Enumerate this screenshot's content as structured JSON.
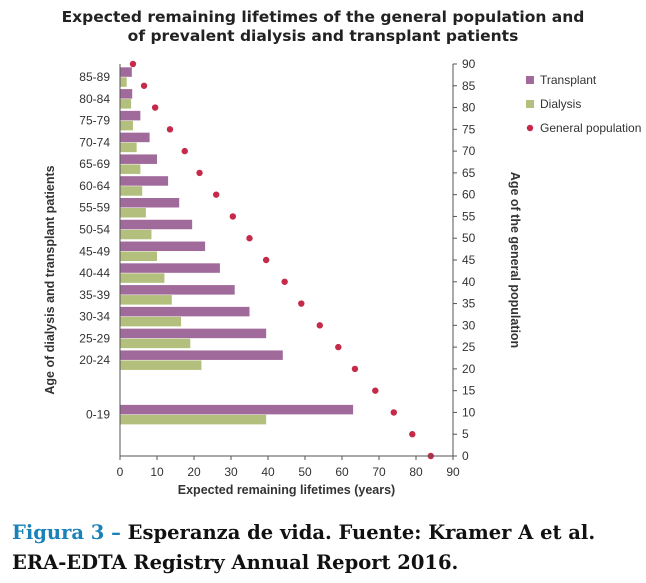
{
  "chart_data": {
    "type": "bar",
    "orientation": "horizontal",
    "title_lines": [
      "Expected remaining lifetimes of the general population and",
      "of prevalent dialysis and transplant patients"
    ],
    "categories": [
      "85-89",
      "80-84",
      "75-79",
      "70-74",
      "65-69",
      "60-64",
      "55-59",
      "50-54",
      "45-49",
      "40-44",
      "35-39",
      "30-34",
      "25-29",
      "20-24",
      "0-19"
    ],
    "category_age_position": [
      87,
      82,
      77,
      72,
      67,
      62,
      57,
      52,
      47,
      42,
      37,
      32,
      27,
      22,
      9.5
    ],
    "series": [
      {
        "name": "Transplant",
        "color": "#a06a9a",
        "values": [
          3.2,
          3.3,
          5.5,
          8,
          10,
          13,
          16,
          19.5,
          23,
          27,
          31,
          35,
          39.5,
          44,
          63
        ]
      },
      {
        "name": "Dialysis",
        "color": "#b3bf7d",
        "values": [
          1.8,
          3.0,
          3.5,
          4.5,
          5.5,
          6.0,
          7.0,
          8.5,
          10,
          12,
          14,
          16.5,
          19,
          22,
          39.5
        ]
      }
    ],
    "general_population": {
      "name": "General population",
      "color": "#c52a4a",
      "points": [
        {
          "age": 90,
          "years": 3.5
        },
        {
          "age": 85,
          "years": 6.5
        },
        {
          "age": 80,
          "years": 9.5
        },
        {
          "age": 75,
          "years": 13.5
        },
        {
          "age": 70,
          "years": 17.5
        },
        {
          "age": 65,
          "years": 21.5
        },
        {
          "age": 60,
          "years": 26
        },
        {
          "age": 55,
          "years": 30.5
        },
        {
          "age": 50,
          "years": 35
        },
        {
          "age": 45,
          "years": 39.5
        },
        {
          "age": 40,
          "years": 44.5
        },
        {
          "age": 35,
          "years": 49
        },
        {
          "age": 30,
          "years": 54
        },
        {
          "age": 25,
          "years": 59
        },
        {
          "age": 20,
          "years": 63.5
        },
        {
          "age": 15,
          "years": 69
        },
        {
          "age": 10,
          "years": 74
        },
        {
          "age": 5,
          "years": 79
        },
        {
          "age": 0,
          "years": 84
        }
      ]
    },
    "xlabel": "Expected remaining lifetimes (years)",
    "ylabel_left": "Age of dialysis and transplant patients",
    "ylabel_right": "Age of the general population",
    "xlim": [
      0,
      90
    ],
    "xticks": [
      0,
      10,
      20,
      30,
      40,
      50,
      60,
      70,
      80,
      90
    ],
    "ylim_right": [
      0,
      90
    ],
    "yticks_right": [
      0,
      5,
      10,
      15,
      20,
      25,
      30,
      35,
      40,
      45,
      50,
      55,
      60,
      65,
      70,
      75,
      80,
      85,
      90
    ],
    "legend": [
      "Transplant",
      "Dialysis",
      "General population"
    ],
    "legend_position": "top-right",
    "grid": false
  },
  "caption": {
    "label": "Figura 3 –",
    "text": " Esperanza de vida. Fuente: Kramer A et al. ERA-EDTA Registry Annual Report 2016."
  }
}
